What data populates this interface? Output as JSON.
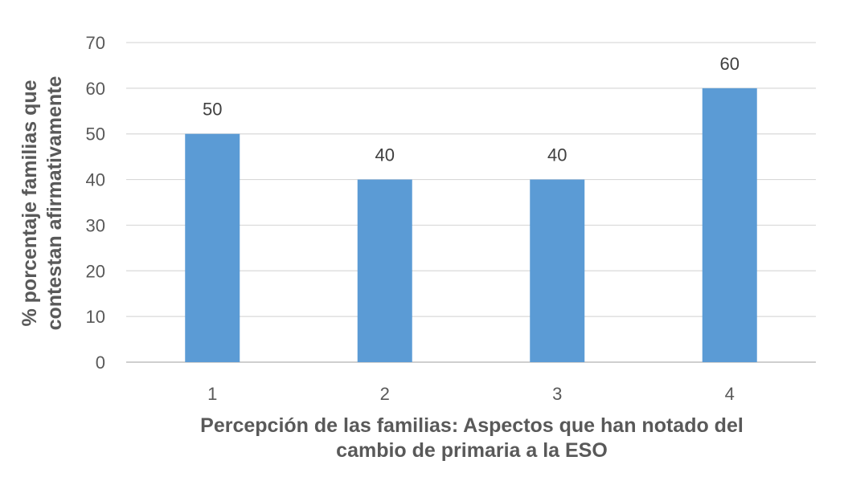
{
  "chart_data": {
    "type": "bar",
    "categories": [
      "1",
      "2",
      "3",
      "4"
    ],
    "values": [
      50,
      40,
      40,
      60
    ],
    "ylim": [
      0,
      70
    ],
    "yticks": [
      0,
      10,
      20,
      30,
      40,
      50,
      60,
      70
    ],
    "xlabel_lines": [
      "Percepción de las familias: Aspectos que han notado del",
      "cambio de primaria a la ESO"
    ],
    "ylabel_lines": [
      "% porcentaje familias que",
      "contestan afirmativamente"
    ],
    "grid": true,
    "legend": "none",
    "data_labels": true,
    "colors": {
      "bar": "#5B9BD5",
      "grid": "#D9D9D9",
      "axis": "#BFBFBF",
      "text": "#595959",
      "data_label": "#404040"
    }
  }
}
